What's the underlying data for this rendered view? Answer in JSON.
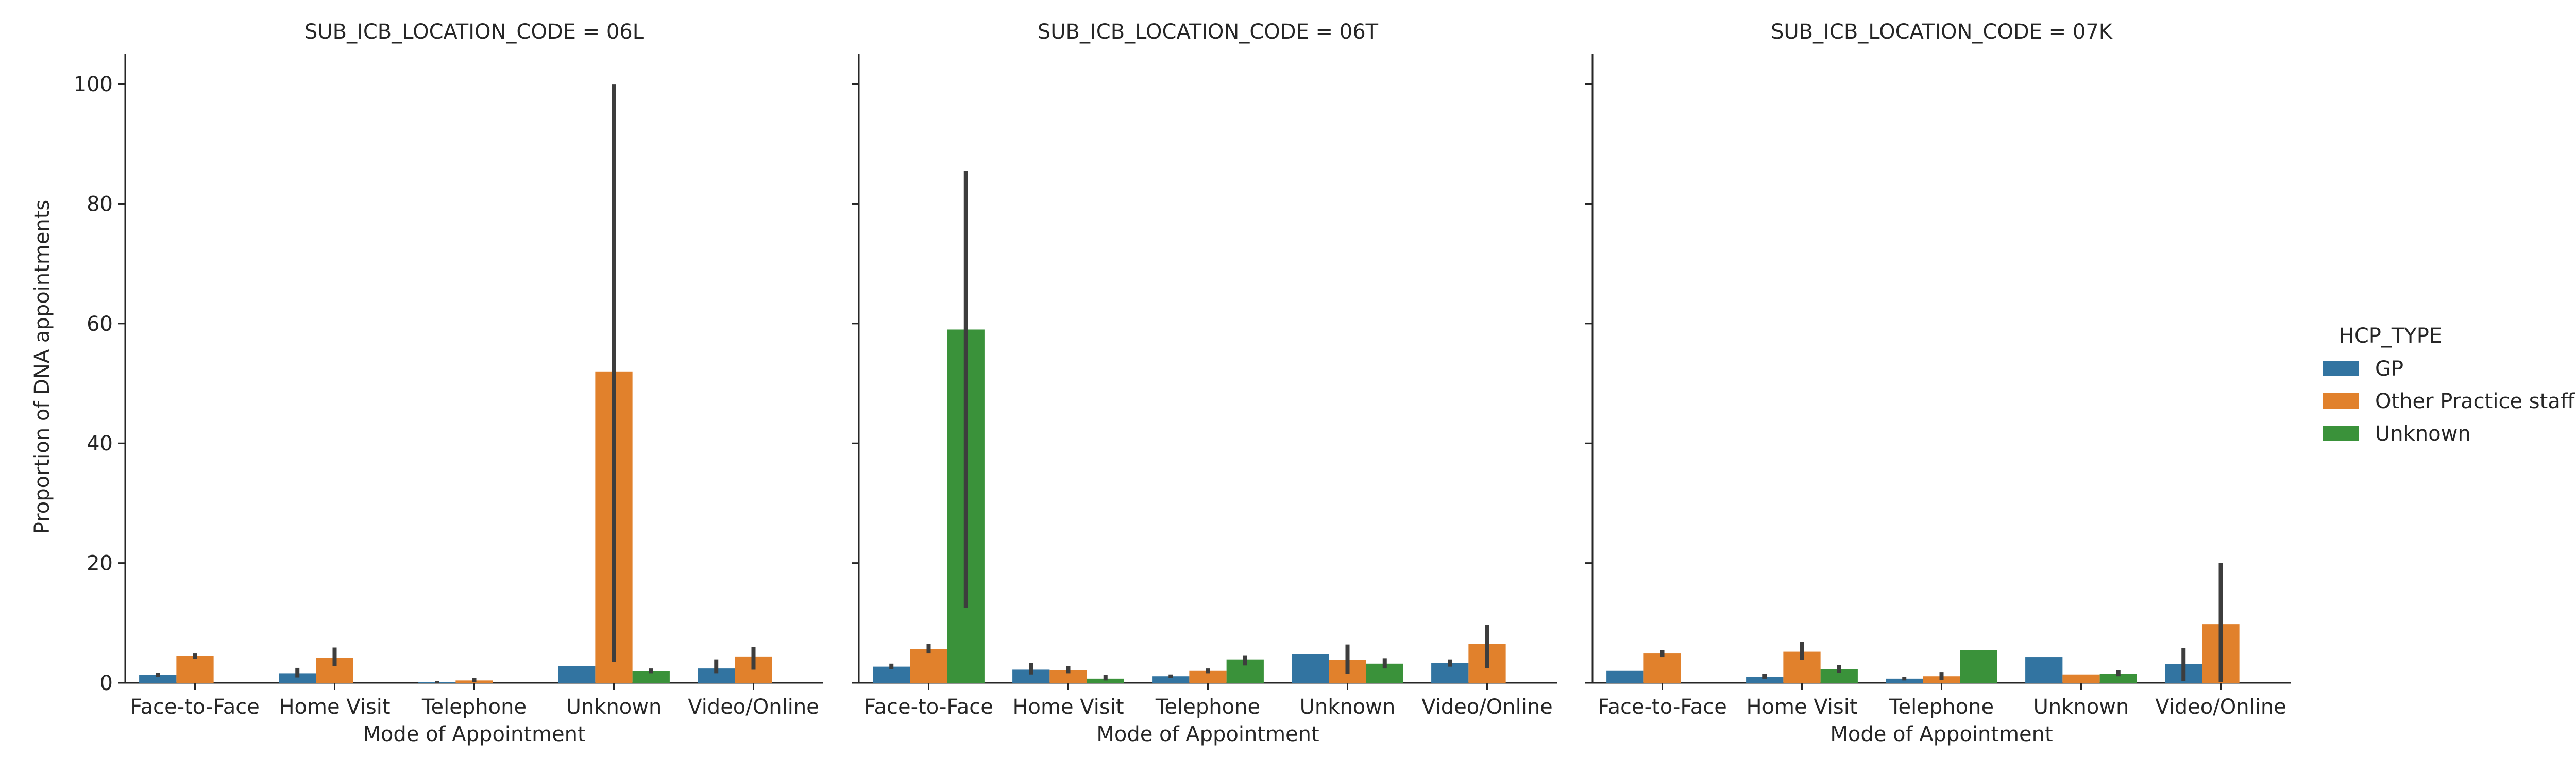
{
  "figure": {
    "ylabel": "Proportion of DNA appointments",
    "xlabel": "Mode of Appointment",
    "legend_title": "HCP_TYPE"
  },
  "chart_data": [
    {
      "type": "bar",
      "title": "SUB_ICB_LOCATION_CODE = 06L",
      "xlabel": "Mode of Appointment",
      "ylabel": "Proportion of DNA appointments",
      "ylim": [
        0,
        105
      ],
      "yticks": [
        0,
        20,
        40,
        60,
        80,
        100
      ],
      "categories": [
        "Face-to-Face",
        "Home Visit",
        "Telephone",
        "Unknown",
        "Video/Online"
      ],
      "series": [
        {
          "name": "GP",
          "color": "#3274a1",
          "values": [
            1.3,
            1.6,
            0.1,
            2.8,
            2.4
          ],
          "ci": [
            [
              1.0,
              1.7
            ],
            [
              0.9,
              2.5
            ],
            [
              0,
              0.3
            ],
            null,
            [
              1.6,
              3.9
            ]
          ]
        },
        {
          "name": "Other Practice staff",
          "color": "#e1812c",
          "values": [
            4.5,
            4.2,
            0.4,
            52.0,
            4.4
          ],
          "ci": [
            [
              4.0,
              4.9
            ],
            [
              2.8,
              5.9
            ],
            [
              0.1,
              0.8
            ],
            [
              3.5,
              100.0
            ],
            [
              2.2,
              6.0
            ]
          ]
        },
        {
          "name": "Unknown",
          "color": "#3a923a",
          "values": [
            null,
            null,
            null,
            1.9,
            null
          ],
          "ci": [
            null,
            null,
            null,
            [
              1.6,
              2.4
            ],
            null
          ]
        }
      ],
      "legend": "right"
    },
    {
      "type": "bar",
      "title": "SUB_ICB_LOCATION_CODE = 06T",
      "xlabel": "Mode of Appointment",
      "ylim": [
        0,
        105
      ],
      "categories": [
        "Face-to-Face",
        "Home Visit",
        "Telephone",
        "Unknown",
        "Video/Online"
      ],
      "series": [
        {
          "name": "GP",
          "color": "#3274a1",
          "values": [
            2.7,
            2.2,
            1.1,
            4.8,
            3.3
          ],
          "ci": [
            [
              2.3,
              3.2
            ],
            [
              1.4,
              3.3
            ],
            [
              0.8,
              1.4
            ],
            null,
            [
              2.7,
              3.9
            ]
          ]
        },
        {
          "name": "Other Practice staff",
          "color": "#e1812c",
          "values": [
            5.6,
            2.1,
            2.0,
            3.8,
            6.5
          ],
          "ci": [
            [
              4.9,
              6.5
            ],
            [
              1.6,
              2.8
            ],
            [
              1.6,
              2.4
            ],
            [
              1.5,
              6.4
            ],
            [
              2.5,
              9.7
            ]
          ]
        },
        {
          "name": "Unknown",
          "color": "#3a923a",
          "values": [
            59.0,
            0.7,
            3.9,
            3.2,
            null
          ],
          "ci": [
            [
              12.5,
              85.5
            ],
            [
              0.4,
              1.3
            ],
            [
              2.9,
              4.6
            ],
            [
              2.4,
              4.1
            ],
            null
          ]
        }
      ],
      "legend": "right"
    },
    {
      "type": "bar",
      "title": "SUB_ICB_LOCATION_CODE = 07K",
      "xlabel": "Mode of Appointment",
      "ylim": [
        0,
        105
      ],
      "categories": [
        "Face-to-Face",
        "Home Visit",
        "Telephone",
        "Unknown",
        "Video/Online"
      ],
      "series": [
        {
          "name": "GP",
          "color": "#3274a1",
          "values": [
            2.0,
            1.0,
            0.7,
            4.3,
            3.1
          ],
          "ci": [
            null,
            [
              0.7,
              1.5
            ],
            [
              0.4,
              1.0
            ],
            null,
            [
              0.3,
              5.8
            ]
          ]
        },
        {
          "name": "Other Practice staff",
          "color": "#e1812c",
          "values": [
            4.9,
            5.2,
            1.1,
            1.4,
            9.8
          ],
          "ci": [
            [
              4.3,
              5.5
            ],
            [
              3.8,
              6.8
            ],
            [
              0.5,
              1.8
            ],
            null,
            [
              0.1,
              20.0
            ]
          ]
        },
        {
          "name": "Unknown",
          "color": "#3a923a",
          "values": [
            null,
            2.3,
            5.5,
            1.5,
            null
          ],
          "ci": [
            null,
            [
              1.7,
              3.0
            ],
            null,
            [
              1.1,
              2.1
            ],
            null
          ]
        }
      ],
      "legend": "right"
    }
  ]
}
